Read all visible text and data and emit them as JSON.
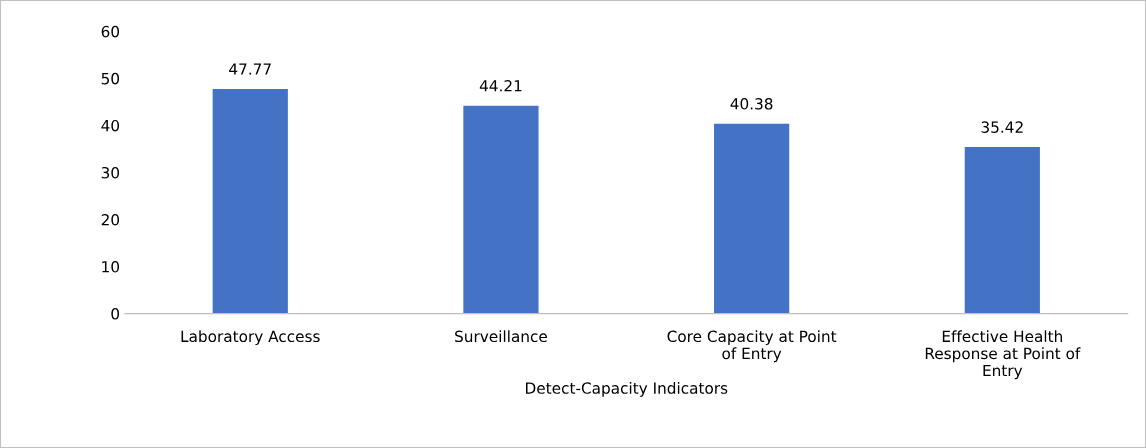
{
  "chart_data": {
    "type": "bar",
    "xlabel": "Detect-Capacity Indicators",
    "categories": [
      "Laboratory Access",
      "Surveillance",
      "Core Capacity at Point of Entry",
      "Effective Health Response at Point of Entry"
    ],
    "values": [
      47.77,
      44.21,
      40.38,
      35.42
    ],
    "color": "#4472c4",
    "ylim": [
      0,
      60
    ],
    "yticks": [
      0,
      10,
      20,
      30,
      40,
      50,
      60
    ],
    "grid": false,
    "data_labels": true
  }
}
